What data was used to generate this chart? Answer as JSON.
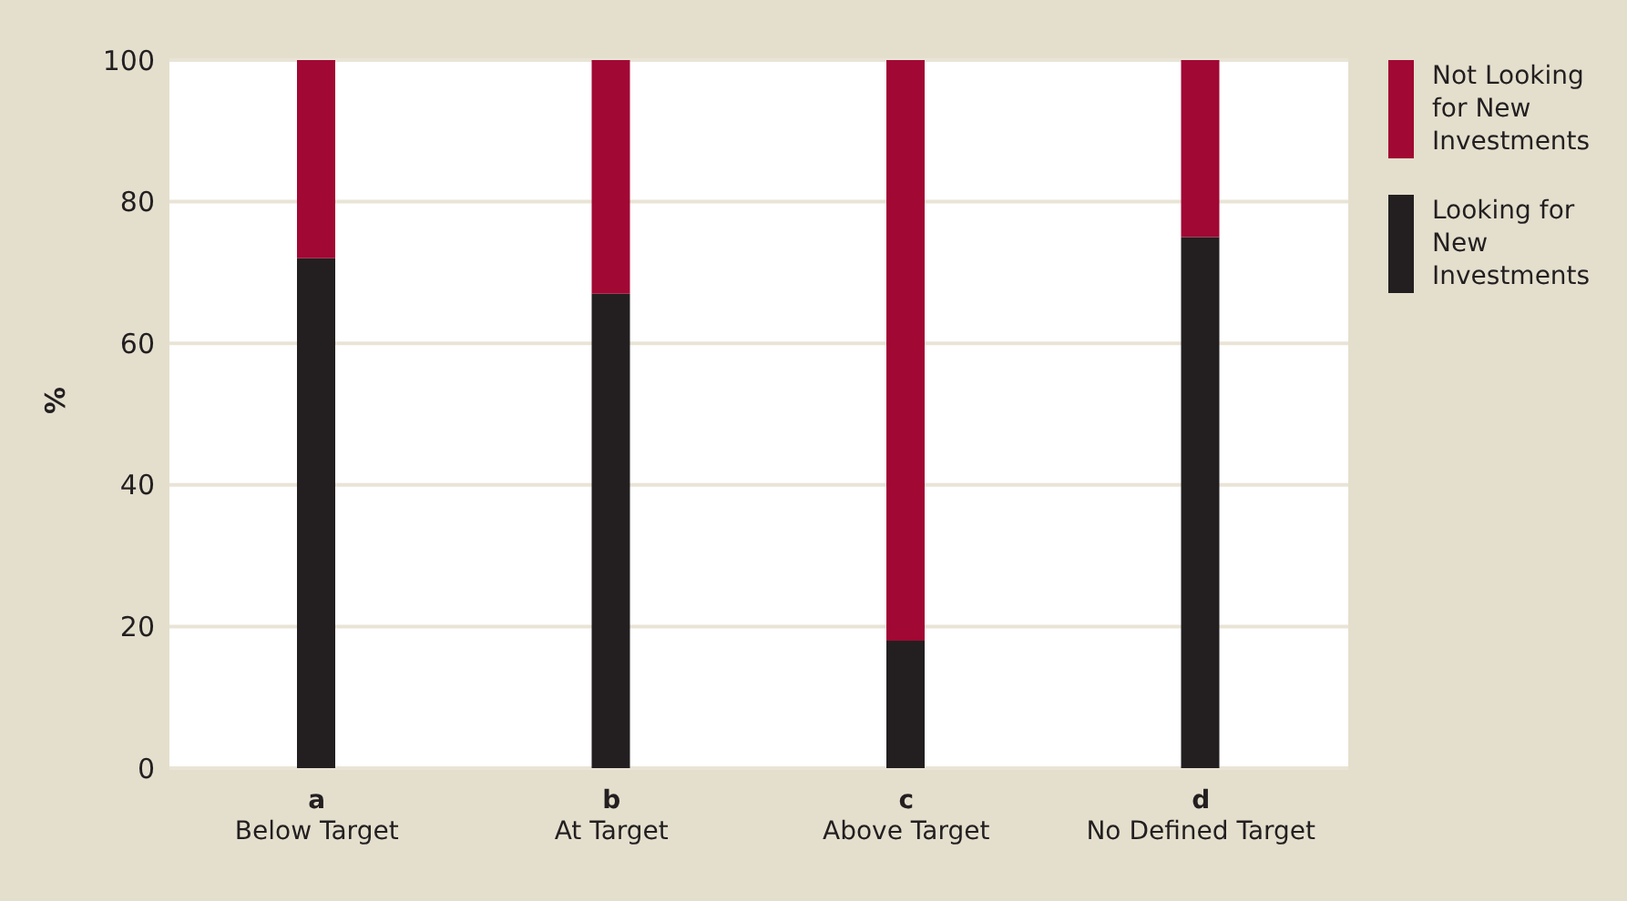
{
  "chart_data": {
    "type": "bar",
    "stacked": true,
    "ylabel": "%",
    "categories": [
      "a\nBelow Target",
      "b\nAt Target",
      "c\nAbove Target",
      "d\nNo Defined Target"
    ],
    "series": [
      {
        "name": "Looking for New Investments",
        "color": "#231f20",
        "values": [
          72,
          67,
          18,
          75
        ]
      },
      {
        "name": "Not Looking for New Investments",
        "color": "#a10834",
        "values": [
          28,
          33,
          82,
          25
        ]
      }
    ],
    "ylim": [
      0,
      100
    ],
    "yticks": [
      0,
      20,
      40,
      60,
      80,
      100
    ],
    "grid": "y",
    "legend": "top right"
  }
}
